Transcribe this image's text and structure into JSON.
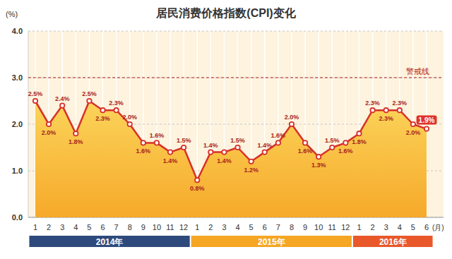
{
  "chart_data": {
    "type": "line",
    "title": "居民消费价格指数(CPI)变化",
    "x_label": "(月)",
    "y_label": "(%)",
    "categories": [
      "1",
      "2",
      "3",
      "4",
      "5",
      "6",
      "7",
      "8",
      "9",
      "10",
      "11",
      "12",
      "1",
      "2",
      "3",
      "4",
      "5",
      "6",
      "7",
      "8",
      "9",
      "10",
      "11",
      "12",
      "1",
      "2",
      "3",
      "4",
      "5",
      "6"
    ],
    "values": [
      2.5,
      2.0,
      2.4,
      1.8,
      2.5,
      2.3,
      2.3,
      2.0,
      1.6,
      1.6,
      1.4,
      1.5,
      0.8,
      1.4,
      1.4,
      1.5,
      1.2,
      1.4,
      1.6,
      2.0,
      1.6,
      1.3,
      1.5,
      1.6,
      1.8,
      2.3,
      2.3,
      2.3,
      2.0,
      1.9
    ],
    "value_labels": [
      "2.5%",
      "2.0%",
      "2.4%",
      "1.8%",
      "2.5%",
      "2.3%",
      "2.3%",
      "2.0%",
      "1.6%",
      "1.6%",
      "1.4%",
      "1.5%",
      "0.8%",
      "1.4%",
      "1.4%",
      "1.5%",
      "1.2%",
      "1.4%",
      "1.6%",
      "2.0%",
      "1.6%",
      "1.3%",
      "1.5%",
      "1.6%",
      "1.8%",
      "2.3%",
      "2.3%",
      "2.3%",
      "2.0%",
      "1.9%"
    ],
    "groups": [
      {
        "label": "2014年",
        "size": 12,
        "color": "#2e4a7d"
      },
      {
        "label": "2015年",
        "size": 12,
        "color": "#f5a623"
      },
      {
        "label": "2016年",
        "size": 6,
        "color": "#e8582a"
      }
    ],
    "color": "#d7312a",
    "marker": "circle",
    "ylim": [
      0,
      4
    ],
    "yticks": [
      {
        "value": 0,
        "label": "0.0"
      },
      {
        "value": 1,
        "label": "1.0"
      },
      {
        "value": 2,
        "label": "2.0"
      },
      {
        "value": 3,
        "label": "3.0"
      },
      {
        "value": 4,
        "label": "4.0"
      }
    ],
    "grid": true,
    "data_labels": true,
    "annotations": [
      {
        "type": "hline",
        "value": 3,
        "label": "警戒线",
        "color": "#b22222"
      }
    ]
  }
}
